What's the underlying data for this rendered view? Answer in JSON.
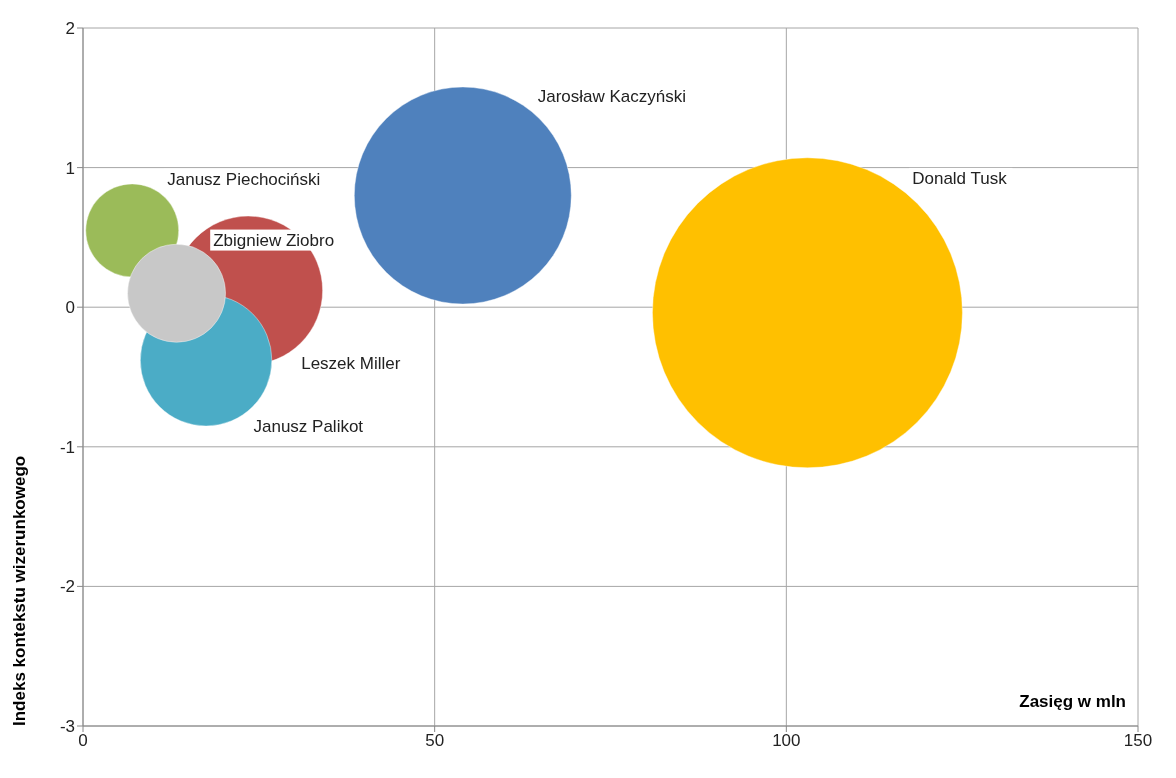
{
  "chart_data": {
    "type": "bubble",
    "xlabel": "Zasięg w mln",
    "ylabel": "Indeks kontekstu wizerunkowego",
    "xlim": [
      0,
      150
    ],
    "xticks": [
      0,
      50,
      100,
      150
    ],
    "ylim": [
      -3,
      2
    ],
    "yticks": [
      -3,
      -2,
      -1,
      0,
      1,
      2
    ],
    "grid": true,
    "series": [
      {
        "name": "Donald Tusk",
        "color": "#ffc000",
        "x": [
          103
        ],
        "values": [
          -0.04
        ],
        "sizes": [
          1
        ]
      },
      {
        "name": "Jarosław Kaczyński",
        "color": "#4f81bd",
        "x": [
          54
        ],
        "values": [
          0.8
        ],
        "sizes": [
          0.49
        ]
      },
      {
        "name": "Leszek Miller",
        "color": "#c0504d",
        "x": [
          23.5
        ],
        "values": [
          0.12
        ],
        "sizes": [
          0.23
        ]
      },
      {
        "name": "Janusz Palikot",
        "color": "#4bacc6",
        "x": [
          17.5
        ],
        "values": [
          -0.38
        ],
        "sizes": [
          0.18
        ]
      },
      {
        "name": "Janusz Piechociński",
        "color": "#9bbb59",
        "x": [
          7
        ],
        "values": [
          0.55
        ],
        "sizes": [
          0.09
        ]
      },
      {
        "name": "Zbigniew Ziobro",
        "color": "#c8c8c8",
        "x": [
          13.3
        ],
        "values": [
          0.1
        ],
        "sizes": [
          0.1
        ]
      }
    ]
  }
}
